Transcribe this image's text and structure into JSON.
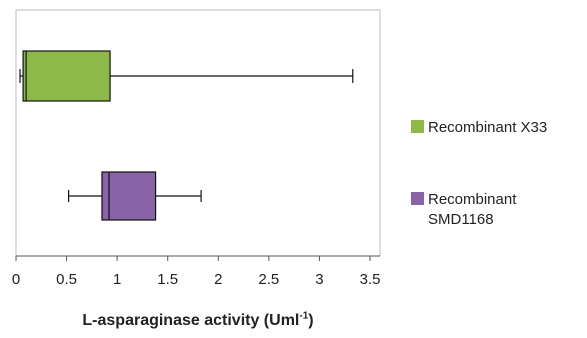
{
  "chart_data": {
    "type": "boxplot",
    "xlabel_main": "L-asparaginase  activity (Uml",
    "xlabel_sup": "-1",
    "xlabel_end": ")",
    "xlim": [
      0,
      3.5
    ],
    "xticks": [
      0,
      0.5,
      1,
      1.5,
      2,
      2.5,
      3,
      3.5
    ],
    "xtick_labels": [
      "0",
      "0.5",
      "1",
      "1.5",
      "2",
      "2.5",
      "3",
      "3.5"
    ],
    "grid": false,
    "legend_position": "right",
    "series": [
      {
        "name": "Recombinant X33",
        "name_lines": [
          "Recombinant X33"
        ],
        "color": "#8DB84A",
        "min": 0.04,
        "q1": 0.07,
        "median": 0.1,
        "q3": 0.93,
        "max": 3.33
      },
      {
        "name": "Recombinant SMD1168",
        "name_lines": [
          "Recombinant",
          "SMD1168"
        ],
        "color": "#8A62A8",
        "min": 0.52,
        "q1": 0.85,
        "median": 0.92,
        "q3": 1.38,
        "max": 1.83
      }
    ]
  }
}
